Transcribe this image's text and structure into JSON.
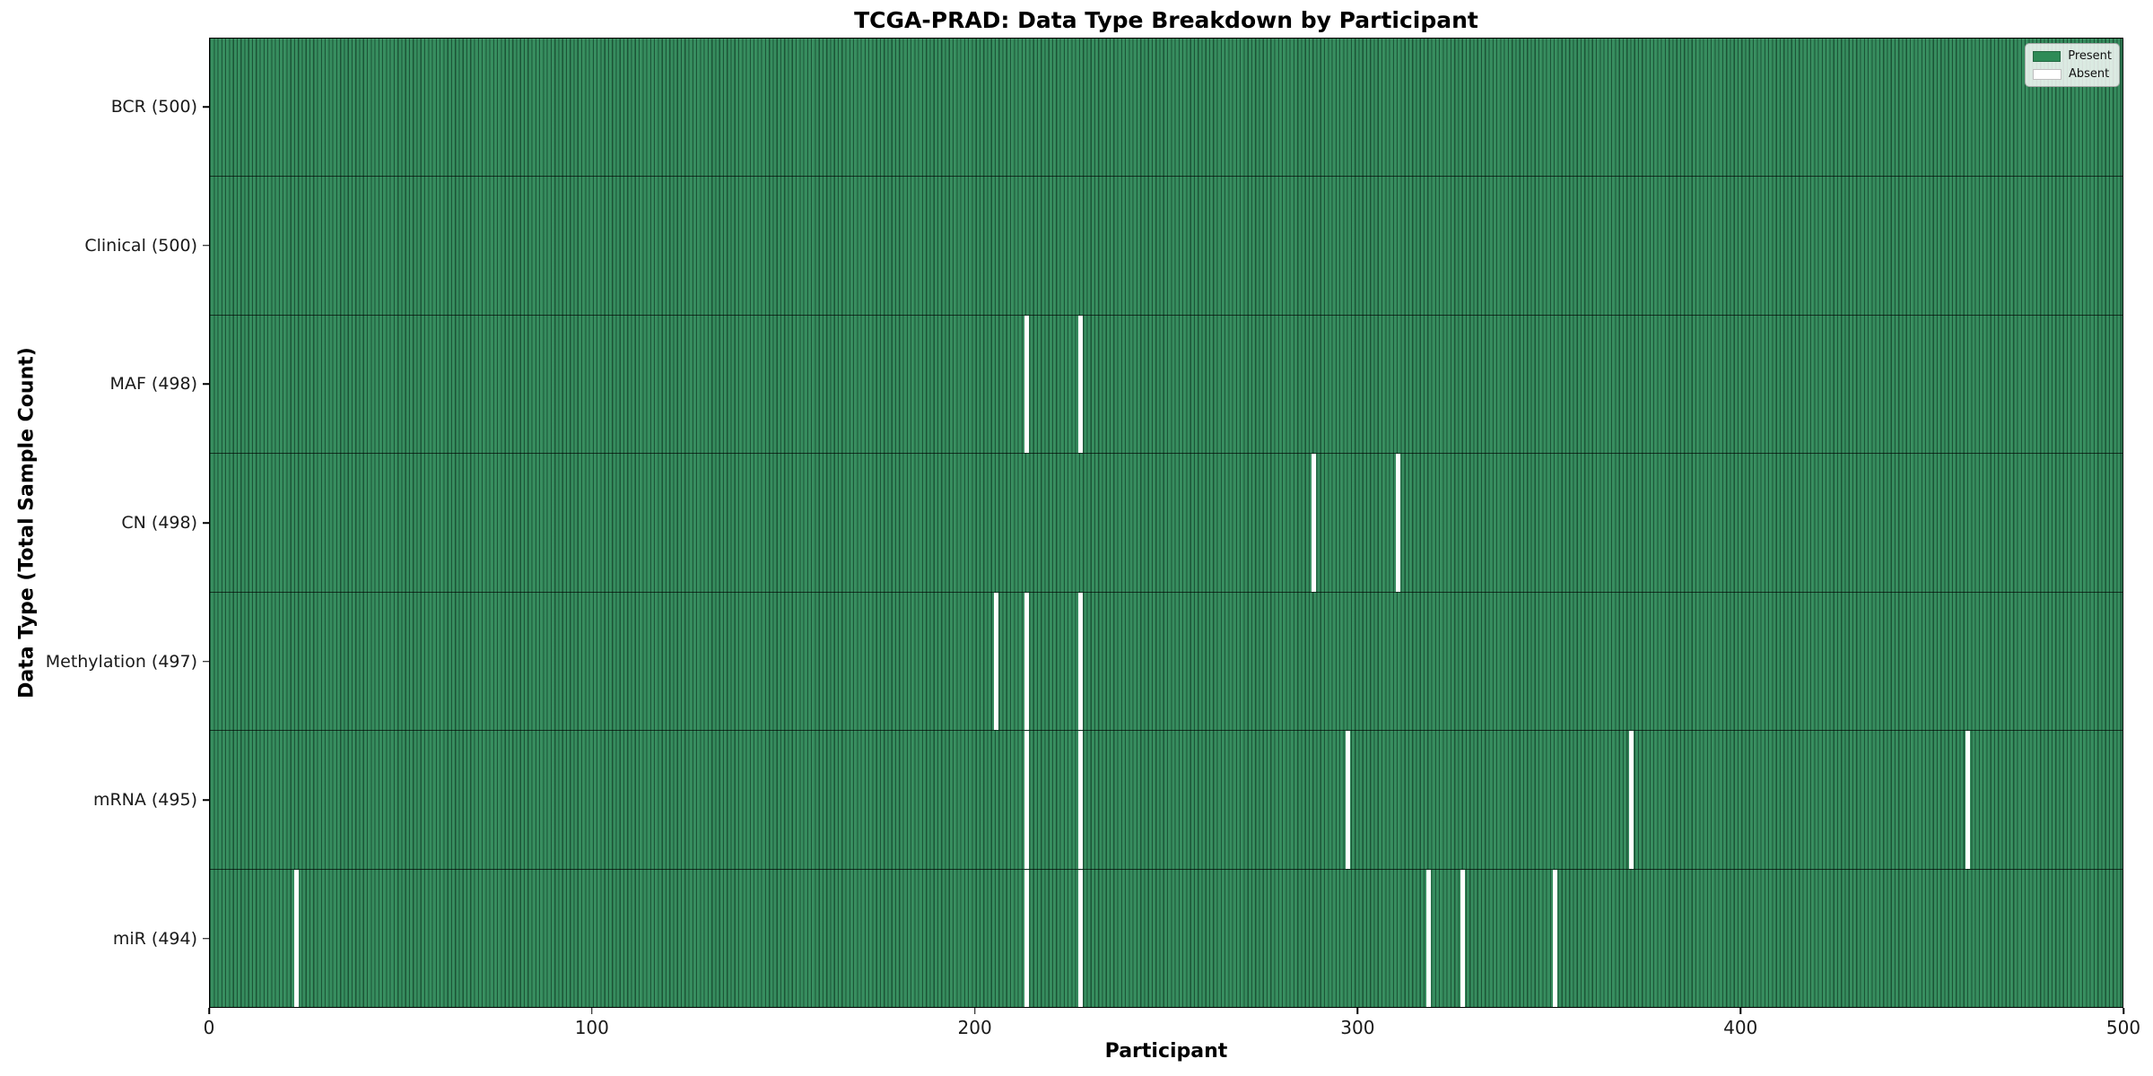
{
  "chart_data": {
    "type": "heatmap",
    "title": "TCGA-PRAD: Data Type Breakdown by Participant",
    "xlabel": "Participant",
    "ylabel": "Data Type (Total Sample Count)",
    "xlim": [
      0,
      500
    ],
    "n_participants": 500,
    "x_ticks": [
      0,
      100,
      200,
      300,
      400,
      500
    ],
    "grid": false,
    "legend_position": "upper right",
    "legend": [
      {
        "label": "Present",
        "color": "#2e8b57"
      },
      {
        "label": "Absent",
        "color": "#ffffff"
      }
    ],
    "rows": [
      {
        "name": "bcr",
        "label": "BCR (500)",
        "total": 500,
        "absent_participants": []
      },
      {
        "name": "clinical",
        "label": "Clinical (500)",
        "total": 500,
        "absent_participants": []
      },
      {
        "name": "maf",
        "label": "MAF (498)",
        "total": 498,
        "absent_participants": [
          213,
          227
        ]
      },
      {
        "name": "cn",
        "label": "CN (498)",
        "total": 498,
        "absent_participants": [
          288,
          310
        ]
      },
      {
        "name": "methylation",
        "label": "Methylation (497)",
        "total": 497,
        "absent_participants": [
          205,
          213,
          227
        ]
      },
      {
        "name": "mrna",
        "label": "mRNA (495)",
        "total": 495,
        "absent_participants": [
          213,
          227,
          297,
          371,
          459
        ]
      },
      {
        "name": "mir",
        "label": "miR (494)",
        "total": 494,
        "absent_participants": [
          22,
          213,
          227,
          318,
          327,
          351
        ]
      }
    ]
  }
}
